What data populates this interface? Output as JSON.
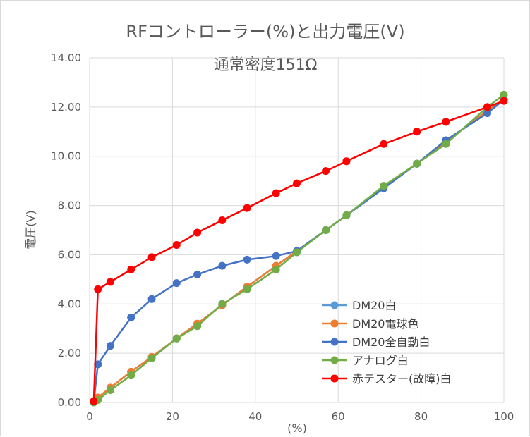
{
  "chart_data": {
    "type": "line",
    "title": "RFコントローラー(%)と出力電圧(V)",
    "subtitle": "通常密度151Ω",
    "xlabel": "(%)",
    "ylabel": "電圧(V)",
    "xlim": [
      0,
      100
    ],
    "ylim": [
      0,
      14
    ],
    "x_ticks": [
      "0",
      "20",
      "40",
      "60",
      "80",
      "100"
    ],
    "y_ticks": [
      "0.00",
      "2.00",
      "4.00",
      "6.00",
      "8.00",
      "10.00",
      "12.00",
      "14.00"
    ],
    "grid": true,
    "legend_position": "bottom-right",
    "series": [
      {
        "name": "DM20白",
        "color": "#5b9bd5",
        "x": [
          1,
          2,
          5,
          10,
          15,
          21,
          26,
          32,
          38,
          45,
          50,
          57,
          62,
          71,
          79,
          86,
          96,
          100
        ],
        "y": [
          0.05,
          0.2,
          0.6,
          1.25,
          1.85,
          2.6,
          3.2,
          3.95,
          4.7,
          5.55,
          6.15,
          7.0,
          7.6,
          8.75,
          9.7,
          10.6,
          11.85,
          12.3
        ]
      },
      {
        "name": "DM20電球色",
        "color": "#ed7d31",
        "x": [
          1,
          2,
          5,
          10,
          15,
          21,
          26,
          32,
          38,
          45,
          50,
          57,
          62,
          71,
          79,
          86,
          96,
          100
        ],
        "y": [
          0.05,
          0.2,
          0.6,
          1.25,
          1.85,
          2.6,
          3.2,
          3.95,
          4.7,
          5.55,
          6.15,
          7.0,
          7.6,
          8.75,
          9.7,
          10.6,
          11.85,
          12.3
        ]
      },
      {
        "name": "DM20全自動白",
        "color": "#4472c4",
        "x": [
          1,
          2,
          5,
          10,
          15,
          21,
          26,
          32,
          38,
          45,
          50,
          57,
          62,
          71,
          79,
          86,
          96,
          100
        ],
        "y": [
          0.05,
          1.55,
          2.3,
          3.45,
          4.2,
          4.85,
          5.2,
          5.55,
          5.8,
          5.95,
          6.15,
          7.0,
          7.6,
          8.7,
          9.7,
          10.65,
          11.75,
          12.3
        ]
      },
      {
        "name": "アナログ白",
        "color": "#70ad47",
        "x": [
          1,
          2,
          5,
          10,
          15,
          21,
          26,
          32,
          38,
          45,
          50,
          57,
          62,
          71,
          79,
          86,
          96,
          100
        ],
        "y": [
          0.0,
          0.1,
          0.5,
          1.1,
          1.8,
          2.6,
          3.1,
          4.0,
          4.6,
          5.4,
          6.1,
          7.0,
          7.6,
          8.8,
          9.7,
          10.5,
          12.0,
          12.5
        ]
      },
      {
        "name": "赤テスター(故障)白",
        "color": "#ff0000",
        "x": [
          1,
          2,
          5,
          10,
          15,
          21,
          26,
          32,
          38,
          45,
          50,
          57,
          62,
          71,
          79,
          86,
          96,
          100
        ],
        "y": [
          0.05,
          4.6,
          4.9,
          5.4,
          5.9,
          6.4,
          6.9,
          7.4,
          7.9,
          8.5,
          8.9,
          9.4,
          9.8,
          10.5,
          11.0,
          11.4,
          12.0,
          12.25
        ]
      }
    ]
  }
}
